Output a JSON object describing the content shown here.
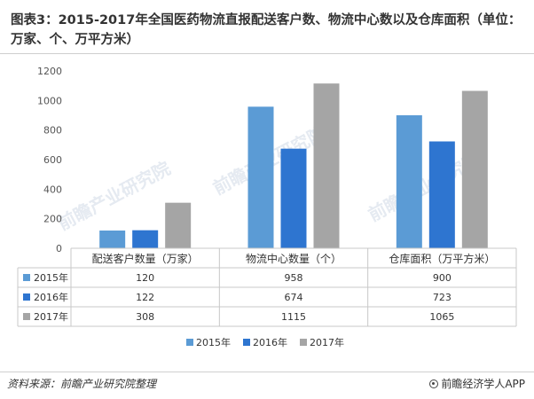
{
  "header": {
    "title": "图表3：2015-2017年全国医药物流直报配送客户数、物流中心数以及仓库面积（单位：万家、个、万平方米）"
  },
  "chart_data": {
    "type": "bar",
    "categories": [
      "配送客户数量（万家）",
      "物流中心数量（个）",
      "仓库面积（万平方米）"
    ],
    "series": [
      {
        "name": "2015年",
        "values": [
          120,
          958,
          900
        ],
        "color": "#5b9bd5"
      },
      {
        "name": "2016年",
        "values": [
          122,
          674,
          723
        ],
        "color": "#2e75d0"
      },
      {
        "name": "2017年",
        "values": [
          308,
          1115,
          1065
        ],
        "color": "#a5a5a5"
      }
    ],
    "yticks": [
      0,
      200,
      400,
      600,
      800,
      1000,
      1200
    ],
    "ylim": [
      0,
      1200
    ],
    "grid": false,
    "legend_position": "bottom",
    "data_table": true
  },
  "watermarks": [
    "前瞻产业研究院",
    "前瞻产业研究院",
    "前瞻产业研究院"
  ],
  "footer": {
    "source": "资料来源：前瞻产业研究院整理",
    "brand": "前瞻经济学人APP"
  }
}
